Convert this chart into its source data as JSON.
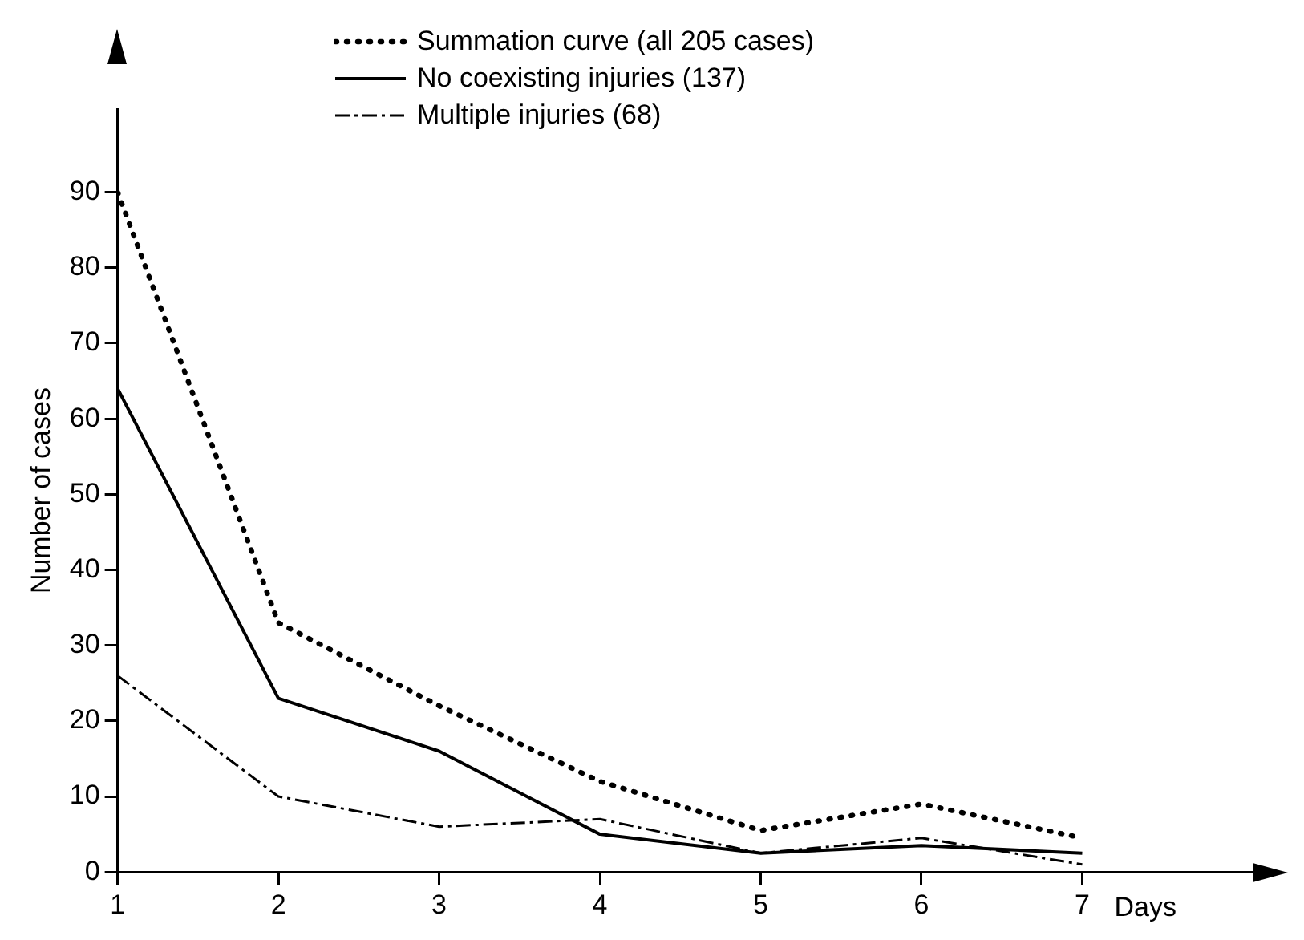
{
  "chart_data": {
    "type": "line",
    "xlabel": "Days",
    "ylabel": "Number of cases",
    "x": [
      1,
      2,
      3,
      4,
      5,
      6,
      7
    ],
    "series": [
      {
        "name": "Summation curve (all 205 cases)",
        "color": "#000000",
        "line_style": "dotted",
        "values": [
          90,
          33,
          22,
          12,
          5.5,
          9,
          4.5
        ]
      },
      {
        "name": "No coexisting injuries (137)",
        "color": "#000000",
        "line_style": "solid",
        "values": [
          64,
          23,
          16,
          5,
          2.5,
          3.5,
          2.5
        ]
      },
      {
        "name": "Multiple injuries (68)",
        "color": "#000000",
        "line_style": "dashdot",
        "values": [
          26,
          10,
          6,
          7,
          2.5,
          4.5,
          1
        ]
      }
    ],
    "xlim": [
      1,
      8.1
    ],
    "xticks": [
      1,
      2,
      3,
      4,
      5,
      6,
      7
    ],
    "ylim": [
      0,
      101
    ],
    "yticks": [
      0,
      10,
      20,
      30,
      40,
      50,
      60,
      70,
      80,
      90
    ],
    "grid": false,
    "legend": "top",
    "marker": "none"
  }
}
